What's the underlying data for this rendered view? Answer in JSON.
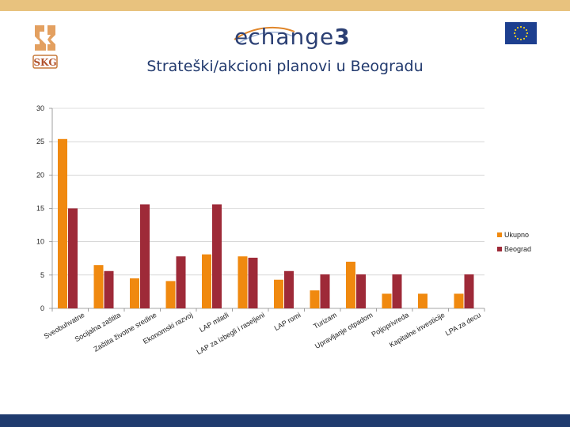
{
  "header": {
    "brand_prefix": "e",
    "brand_word": "change",
    "brand_number": "3",
    "eu_flag_icon": "eu-flag-icon",
    "logo_icon": "sked-logo-icon"
  },
  "title": "Strateški/akcioni planovi u Beogradu",
  "colors": {
    "Ukupno": "#f0890f",
    "Beograd": "#9e2a38",
    "axis": "#888888",
    "grid": "#bfbfbf",
    "brand": "#2b3f73",
    "topbar": "#e8c27e",
    "bottombar": "#1f3b6e"
  },
  "chart_data": {
    "type": "bar",
    "title": "",
    "xlabel": "",
    "ylabel": "",
    "ylim": [
      0,
      30
    ],
    "yticks": [
      0,
      5,
      10,
      15,
      20,
      25,
      30
    ],
    "grid": true,
    "legend": "right",
    "categories": [
      "Sveobuhvatne",
      "Socijalna zaštita",
      "Zaštita životne sredine",
      "Ekonomski razvoj",
      "LAP mladi",
      "LAP za izbegli i raseljeni",
      "LAP romi",
      "Turizam",
      "Upravljanje otpadom",
      "Poljoprivreda",
      "Kapitalne investicije",
      "LPA za decu"
    ],
    "series": [
      {
        "name": "Ukupno",
        "values": [
          25.4,
          6.5,
          4.5,
          4.1,
          8.1,
          7.8,
          4.3,
          2.7,
          7.0,
          2.2,
          2.2,
          2.2
        ]
      },
      {
        "name": "Beograd",
        "values": [
          15.0,
          5.6,
          15.6,
          7.8,
          15.6,
          7.6,
          5.6,
          5.1,
          5.1,
          5.1,
          null,
          5.1
        ]
      }
    ]
  }
}
